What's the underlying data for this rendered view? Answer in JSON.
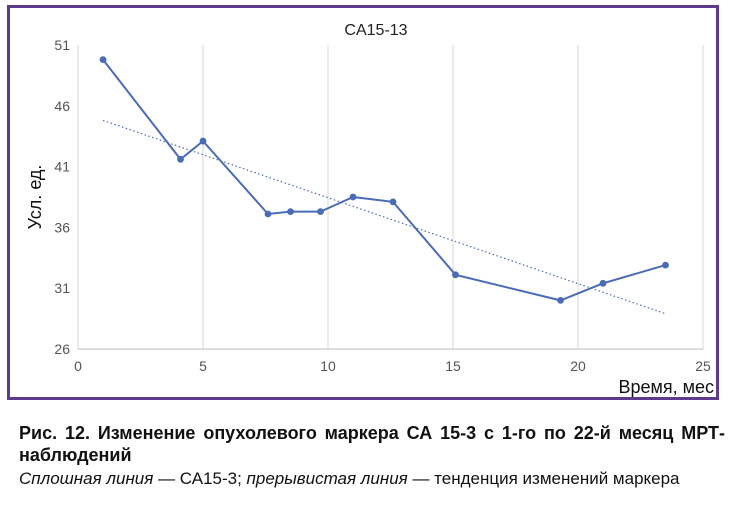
{
  "chart_data": {
    "type": "line",
    "title": "CA15-13",
    "xlabel": "Время, мес",
    "ylabel": "Усл. ед.",
    "xlim": [
      0,
      25
    ],
    "ylim": [
      26,
      51
    ],
    "x_ticks": [
      0,
      5,
      10,
      15,
      20,
      25
    ],
    "y_ticks": [
      26,
      31,
      36,
      41,
      46,
      51
    ],
    "grid": "vertical",
    "series": [
      {
        "style": "solid",
        "color": "#4a6bb5",
        "points": [
          [
            1.0,
            49.8
          ],
          [
            4.1,
            41.6
          ],
          [
            5.0,
            43.1
          ],
          [
            7.6,
            37.1
          ],
          [
            8.5,
            37.3
          ],
          [
            9.7,
            37.3
          ],
          [
            11.0,
            38.5
          ],
          [
            12.6,
            38.1
          ],
          [
            15.1,
            32.1
          ],
          [
            19.3,
            30.0
          ],
          [
            21.0,
            31.4
          ],
          [
            23.5,
            32.9
          ]
        ]
      },
      {
        "style": "dotted",
        "color": "#4a6bb5",
        "points": [
          [
            1.0,
            44.8
          ],
          [
            23.5,
            28.9
          ]
        ]
      }
    ]
  },
  "caption": {
    "title": "Рис. 12. Изменение опухолевого маркера СА 15-3 с 1-го по 22-й месяц МРТ-наблюдений",
    "solid_label": "Сплошная линия",
    "dash": " — ",
    "solid_series": "СА15-3; ",
    "dashed_label": "прерывистая линия",
    "dashed_meaning": " — тенденция изменений маркера"
  }
}
